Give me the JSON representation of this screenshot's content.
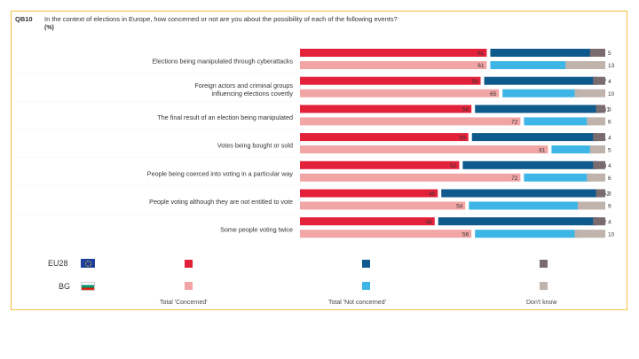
{
  "header": {
    "code": "QB10",
    "question": "In the context of elections in Europe, how concerned or not are you about the possibility of each of the following events?",
    "unit": "(%)"
  },
  "countries": {
    "eu": {
      "label": "EU28",
      "icon": "eu-flag-icon"
    },
    "bg": {
      "label": "BG",
      "icon": "bulgaria-flag-icon"
    }
  },
  "legend": {
    "concerned": "Total 'Concerned'",
    "not_concerned": "Total 'Not concerned'",
    "dont_know": "Don't know"
  },
  "colors": {
    "eu_concerned": "#e4213a",
    "bg_concerned": "#f2a5a5",
    "eu_not_concerned": "#0f5a8c",
    "bg_not_concerned": "#3db5e6",
    "eu_dont_know": "#7a6b6f",
    "bg_dont_know": "#bfb3ac"
  },
  "chart_data": {
    "type": "bar",
    "orientation": "horizontal",
    "stacked": true,
    "categories": [
      "Elections being manipulated through cyberattacks",
      [
        "Foreign actors and criminal groups",
        "influencing elections covertly"
      ],
      "The final result of an election being manipulated",
      "Votes being bought or sold",
      "People being coerced into voting in a particular way",
      "People voting although they are not entitled to vote",
      "Some people voting twice"
    ],
    "series": [
      {
        "name": "EU28",
        "concerned": [
          61,
          59,
          56,
          55,
          52,
          45,
          44
        ],
        "not_concerned": [
          34,
          37,
          41,
          41,
          44,
          52,
          52
        ],
        "dont_know": [
          5,
          4,
          3,
          4,
          4,
          3,
          4
        ]
      },
      {
        "name": "BG",
        "concerned": [
          61,
          65,
          72,
          81,
          72,
          54,
          56
        ],
        "not_concerned": [
          26,
          25,
          22,
          14,
          22,
          37,
          34
        ],
        "dont_know": [
          13,
          10,
          6,
          5,
          6,
          9,
          10
        ]
      }
    ]
  }
}
